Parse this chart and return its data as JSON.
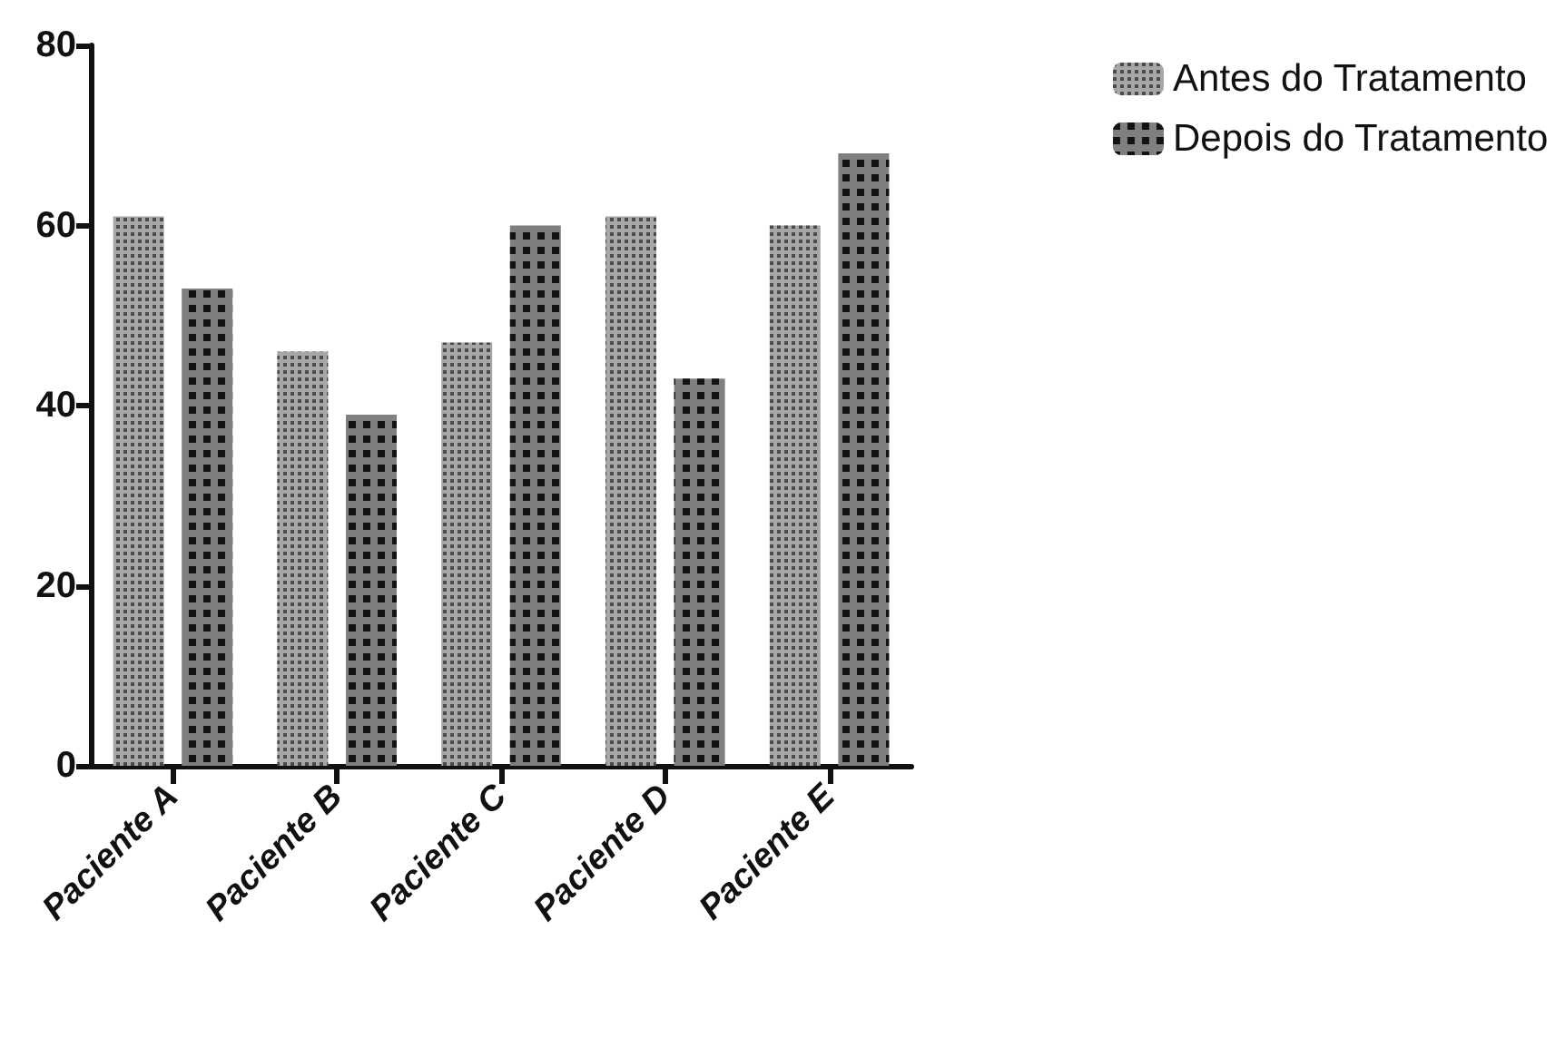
{
  "chart_data": {
    "type": "bar",
    "categories": [
      "Paciente A",
      "Paciente B",
      "Paciente C",
      "Paciente D",
      "Paciente E"
    ],
    "series": [
      {
        "name": "Antes do Tratamento",
        "color": "#a6a6a6",
        "values": [
          61,
          46,
          47,
          61,
          60
        ]
      },
      {
        "name": "Depois do Tratamento",
        "color": "#7f7f7f",
        "values": [
          53,
          39,
          60,
          43,
          68
        ]
      }
    ],
    "ylim": [
      0,
      80
    ],
    "yticks": [
      0,
      20,
      40,
      60,
      80
    ],
    "grid": false,
    "legend": "top right"
  }
}
